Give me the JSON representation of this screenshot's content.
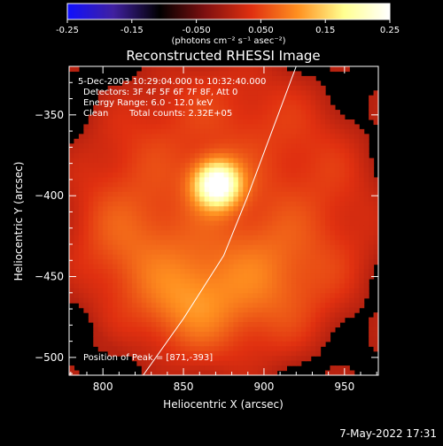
{
  "chart_data": {
    "type": "heatmap",
    "title": "Reconstructed RHESSI Image",
    "xlabel": "Heliocentric X (arcsec)",
    "ylabel": "Heliocentric Y (arcsec)",
    "xlim": [
      779,
      971
    ],
    "ylim": [
      -511,
      -320
    ],
    "x_ticks": [
      800,
      850,
      900,
      950
    ],
    "y_ticks": [
      -500,
      -450,
      -400,
      -350
    ],
    "colorbar": {
      "label": "(photons cm⁻² s⁻¹ asec⁻²)",
      "min": -0.25,
      "max": 0.25,
      "ticks": [
        "-0.25",
        "-0.15",
        "-0.050",
        "0.050",
        "0.15",
        "0.25"
      ],
      "colors": [
        "#1010ff",
        "#4020a0",
        "#000000",
        "#801010",
        "#e03010",
        "#ff9020",
        "#ffff90",
        "#ffffff"
      ]
    },
    "annotations": [
      "5-Dec-2003 10:29:04.000 to 10:32:40.000",
      "Detectors: 3F 4F 5F 6F 7F 8F, Att 0",
      "Energy Range: 6.0 - 12.0 keV",
      "Clean",
      "Total counts: 2.32E+05"
    ],
    "peak_label": "Position of Peak = [871,-393]",
    "peak": [
      871,
      -393
    ],
    "sources": [
      {
        "x": 871,
        "y": -393,
        "intensity": 0.25
      },
      {
        "x": 855,
        "y": -465,
        "intensity": 0.1
      },
      {
        "x": 900,
        "y": -448,
        "intensity": 0.07
      },
      {
        "x": 820,
        "y": -430,
        "intensity": 0.05
      }
    ],
    "limb_curve": [
      [
        825,
        -511
      ],
      [
        850,
        -476
      ],
      [
        875,
        -437
      ],
      [
        890,
        -400
      ],
      [
        905,
        -360
      ],
      [
        920,
        -320
      ]
    ]
  },
  "footer": {
    "timestamp": "7-May-2022 17:31"
  }
}
